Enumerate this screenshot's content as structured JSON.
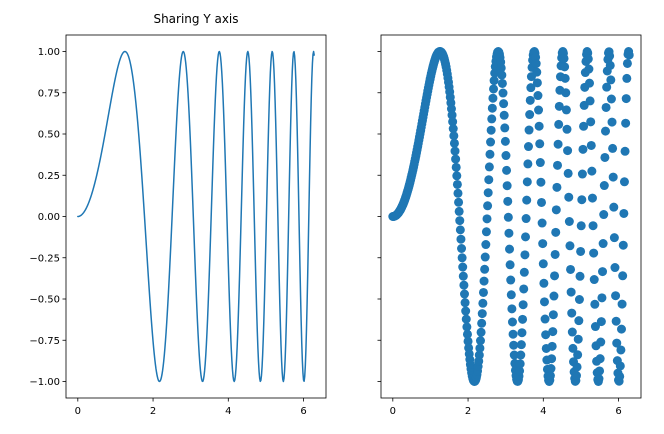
{
  "chart_data": [
    {
      "type": "line",
      "title": "Sharing Y axis",
      "xlabel": "",
      "ylabel": "",
      "function": "y = sin(x^2)",
      "x_range": [
        0,
        6.283185307
      ],
      "num_points": 400,
      "xlim": [
        -0.314,
        6.597
      ],
      "ylim": [
        -1.1,
        1.1
      ],
      "x_ticks": [
        0,
        2,
        4,
        6
      ],
      "x_tick_labels": [
        "0",
        "2",
        "4",
        "6"
      ],
      "y_ticks": [
        -1.0,
        -0.75,
        -0.5,
        -0.25,
        0.0,
        0.25,
        0.5,
        0.75,
        1.0
      ],
      "y_tick_labels": [
        "−1.00",
        "−0.75",
        "−0.50",
        "−0.25",
        "0.00",
        "0.25",
        "0.50",
        "0.75",
        "1.00"
      ],
      "color": "#1f77b4",
      "grid": false
    },
    {
      "type": "scatter",
      "title": "",
      "xlabel": "",
      "ylabel": "",
      "function": "y = sin(x^2)",
      "x_range": [
        0,
        6.283185307
      ],
      "num_points": 400,
      "xlim": [
        -0.314,
        6.597
      ],
      "ylim": [
        -1.1,
        1.1
      ],
      "x_ticks": [
        0,
        2,
        4,
        6
      ],
      "x_tick_labels": [
        "0",
        "2",
        "4",
        "6"
      ],
      "y_ticks": [
        -1.0,
        -0.75,
        -0.5,
        -0.25,
        0.0,
        0.25,
        0.5,
        0.75,
        1.0
      ],
      "y_tick_labels": [],
      "sharey": true,
      "color": "#1f77b4",
      "grid": false
    }
  ]
}
